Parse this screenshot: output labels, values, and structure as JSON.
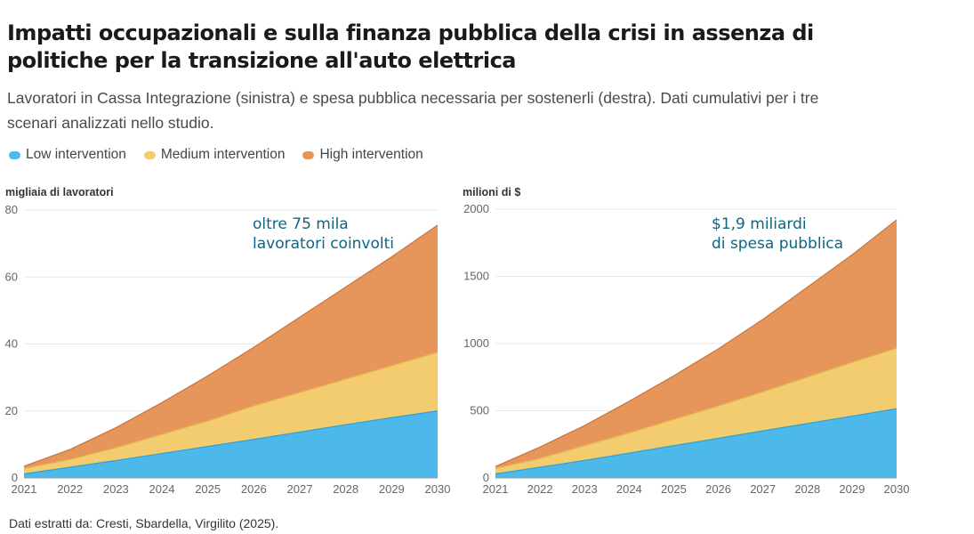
{
  "header": {
    "title": "Impatti occupazionali e sulla finanza pubblica della crisi in assenza di politiche per la transizione all'auto elettrica",
    "subtitle": "Lavoratori in Cassa Integrazione (sinistra) e spesa pubblica necessaria per sostenerli (destra). Dati cumulativi per i tre scenari analizzati nello studio."
  },
  "legend": [
    {
      "label": "Low intervention",
      "color": "#4db8ea"
    },
    {
      "label": "Medium intervention",
      "color": "#f3cc6f"
    },
    {
      "label": "High intervention",
      "color": "#e6965a"
    }
  ],
  "chart_data": [
    {
      "type": "area",
      "stacked": false,
      "unit_label": "migliaia di lavoratori",
      "x": [
        2021,
        2022,
        2023,
        2024,
        2025,
        2026,
        2027,
        2028,
        2029,
        2030
      ],
      "xtick_labels": [
        "2021",
        "2022",
        "2023",
        "2024",
        "2025",
        "2026",
        "2027",
        "2028",
        "2029",
        "2030"
      ],
      "yticks": [
        0,
        20,
        40,
        60,
        80
      ],
      "ytick_labels": [
        "0",
        "20",
        "40",
        "60",
        "80"
      ],
      "ylim": [
        0,
        80
      ],
      "series": [
        {
          "name": "High intervention",
          "color": "#e6965a",
          "line_color": "#c9743a",
          "values": [
            3.5,
            8.5,
            15,
            22.5,
            30.5,
            39,
            48,
            57,
            66,
            75.5
          ]
        },
        {
          "name": "Medium intervention",
          "color": "#f3cc6f",
          "line_color": "#e3b74e",
          "values": [
            2.8,
            5.5,
            9,
            13,
            17,
            21.5,
            25.5,
            29.5,
            33.5,
            37.5
          ]
        },
        {
          "name": "Low intervention",
          "color": "#4db8ea",
          "line_color": "#2ea0d6",
          "values": [
            1.2,
            3.2,
            5.2,
            7.3,
            9.4,
            11.5,
            13.7,
            15.9,
            18,
            20
          ]
        }
      ],
      "annotation": [
        "oltre 75 mila",
        "lavoratori coinvolti"
      ]
    },
    {
      "type": "area",
      "stacked": false,
      "unit_label": "milioni di $",
      "x": [
        2021,
        2022,
        2023,
        2024,
        2025,
        2026,
        2027,
        2028,
        2029,
        2030
      ],
      "xtick_labels": [
        "2021",
        "2022",
        "2023",
        "2024",
        "2025",
        "2026",
        "2027",
        "2028",
        "2029",
        "2030"
      ],
      "yticks": [
        0,
        500,
        1000,
        1500,
        2000
      ],
      "ytick_labels": [
        "0",
        "500",
        "1000",
        "1500",
        "2000"
      ],
      "ylim": [
        0,
        2000
      ],
      "series": [
        {
          "name": "High intervention",
          "color": "#e6965a",
          "line_color": "#c9743a",
          "values": [
            85,
            230,
            390,
            570,
            760,
            960,
            1180,
            1420,
            1660,
            1920
          ]
        },
        {
          "name": "Medium intervention",
          "color": "#f3cc6f",
          "line_color": "#e3b74e",
          "values": [
            70,
            145,
            240,
            335,
            435,
            535,
            640,
            750,
            860,
            965
          ]
        },
        {
          "name": "Low intervention",
          "color": "#4db8ea",
          "line_color": "#2ea0d6",
          "values": [
            30,
            80,
            130,
            185,
            240,
            295,
            350,
            405,
            460,
            515
          ]
        }
      ],
      "annotation": [
        "$1,9 miliardi",
        "di spesa pubblica"
      ]
    }
  ],
  "footer": {
    "source": "Dati estratti da: Cresti, Sbardella, Virgilito (2025)."
  }
}
